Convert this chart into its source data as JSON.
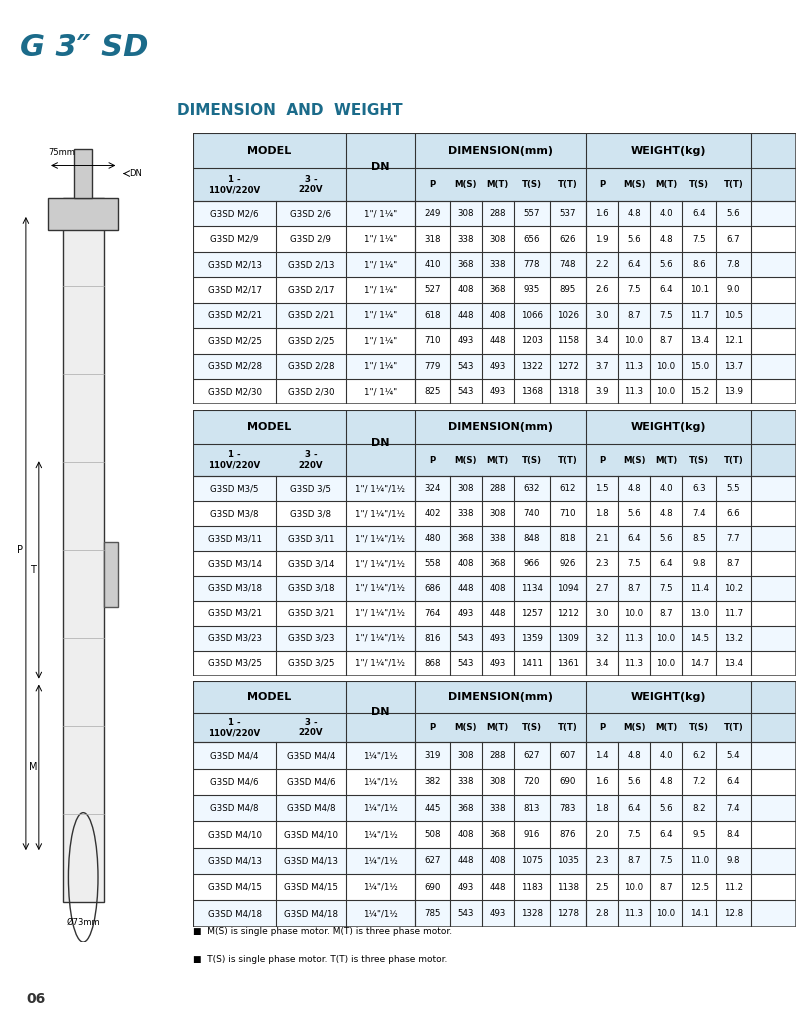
{
  "title": "G 3″ SD",
  "subtitle": "DIMENSION  AND  WEIGHT",
  "title_bg": "#7ECECE",
  "title_color": "#1B6B8A",
  "header_bg": "#D8E8F0",
  "table1": {
    "col_headers": [
      "MODEL",
      "",
      "DN",
      "DIMENSION(mm)",
      "",
      "",
      "",
      "",
      "WEIGHT(kg)",
      "",
      "",
      "",
      ""
    ],
    "sub_headers_model": [
      "1 -\n110V/220V",
      "3 -\n220V"
    ],
    "sub_headers_dim": [
      "P",
      "M(S)",
      "M(T)",
      "T(S)",
      "T(T)"
    ],
    "sub_headers_wt": [
      "P",
      "M(S)",
      "M(T)",
      "T(S)",
      "T(T)"
    ],
    "rows": [
      [
        "G3SD M2/6",
        "G3SD 2/6",
        "1\"/ 1¼\"",
        249,
        308,
        288,
        557,
        537,
        1.6,
        4.8,
        4.0,
        6.4,
        5.6
      ],
      [
        "G3SD M2/9",
        "G3SD 2/9",
        "1\"/ 1¼\"",
        318,
        338,
        308,
        656,
        626,
        1.9,
        5.6,
        4.8,
        7.5,
        6.7
      ],
      [
        "G3SD M2/13",
        "G3SD 2/13",
        "1\"/ 1¼\"",
        410,
        368,
        338,
        778,
        748,
        2.2,
        6.4,
        5.6,
        8.6,
        7.8
      ],
      [
        "G3SD M2/17",
        "G3SD 2/17",
        "1\"/ 1¼\"",
        527,
        408,
        368,
        935,
        895,
        2.6,
        7.5,
        6.4,
        10.1,
        9.0
      ],
      [
        "G3SD M2/21",
        "G3SD 2/21",
        "1\"/ 1¼\"",
        618,
        448,
        408,
        1066,
        1026,
        3.0,
        8.7,
        7.5,
        11.7,
        10.5
      ],
      [
        "G3SD M2/25",
        "G3SD 2/25",
        "1\"/ 1¼\"",
        710,
        493,
        448,
        1203,
        1158,
        3.4,
        10.0,
        8.7,
        13.4,
        12.1
      ],
      [
        "G3SD M2/28",
        "G3SD 2/28",
        "1\"/ 1¼\"",
        779,
        543,
        493,
        1322,
        1272,
        3.7,
        11.3,
        10.0,
        15.0,
        13.7
      ],
      [
        "G3SD M2/30",
        "G3SD 2/30",
        "1\"/ 1¼\"",
        825,
        543,
        493,
        1368,
        1318,
        3.9,
        11.3,
        10.0,
        15.2,
        13.9
      ]
    ]
  },
  "table2": {
    "sub_headers_model": [
      "1 -\n110V/220V",
      "3 -\n220V"
    ],
    "sub_headers_dim": [
      "P",
      "M(S)",
      "M(T)",
      "T(S)",
      "T(T)"
    ],
    "sub_headers_wt": [
      "P",
      "M(S)",
      "M(T)",
      "T(S)",
      "T(T)"
    ],
    "rows": [
      [
        "G3SD M3/5",
        "G3SD 3/5",
        "1\"/ 1¼\"/1½",
        324,
        308,
        288,
        632,
        612,
        1.5,
        4.8,
        4.0,
        6.3,
        5.5
      ],
      [
        "G3SD M3/8",
        "G3SD 3/8",
        "1\"/ 1¼\"/1½",
        402,
        338,
        308,
        740,
        710,
        1.8,
        5.6,
        4.8,
        7.4,
        6.6
      ],
      [
        "G3SD M3/11",
        "G3SD 3/11",
        "1\"/ 1¼\"/1½",
        480,
        368,
        338,
        848,
        818,
        2.1,
        6.4,
        5.6,
        8.5,
        7.7
      ],
      [
        "G3SD M3/14",
        "G3SD 3/14",
        "1\"/ 1¼\"/1½",
        558,
        408,
        368,
        966,
        926,
        2.3,
        7.5,
        6.4,
        9.8,
        8.7
      ],
      [
        "G3SD M3/18",
        "G3SD 3/18",
        "1\"/ 1¼\"/1½",
        686,
        448,
        408,
        1134,
        1094,
        2.7,
        8.7,
        7.5,
        11.4,
        10.2
      ],
      [
        "G3SD M3/21",
        "G3SD 3/21",
        "1\"/ 1¼\"/1½",
        764,
        493,
        448,
        1257,
        1212,
        3.0,
        10.0,
        8.7,
        13.0,
        11.7
      ],
      [
        "G3SD M3/23",
        "G3SD 3/23",
        "1\"/ 1¼\"/1½",
        816,
        543,
        493,
        1359,
        1309,
        3.2,
        11.3,
        10.0,
        14.5,
        13.2
      ],
      [
        "G3SD M3/25",
        "G3SD 3/25",
        "1\"/ 1¼\"/1½",
        868,
        543,
        493,
        1411,
        1361,
        3.4,
        11.3,
        10.0,
        14.7,
        13.4
      ]
    ]
  },
  "table3": {
    "sub_headers_model": [
      "1 -\n110V/220V",
      "3 -\n220V"
    ],
    "sub_headers_dim": [
      "P",
      "M(S)",
      "M(T)",
      "T(S)",
      "T(T)"
    ],
    "sub_headers_wt": [
      "P",
      "M(S)",
      "M(T)",
      "T(S)",
      "T(T)"
    ],
    "rows": [
      [
        "G3SD M4/4",
        "G3SD M4/4",
        "1¼\"/1½",
        319,
        308,
        288,
        627,
        607,
        1.4,
        4.8,
        4.0,
        6.2,
        5.4
      ],
      [
        "G3SD M4/6",
        "G3SD M4/6",
        "1¼\"/1½",
        382,
        338,
        308,
        720,
        690,
        1.6,
        5.6,
        4.8,
        7.2,
        6.4
      ],
      [
        "G3SD M4/8",
        "G3SD M4/8",
        "1¼\"/1½",
        445,
        368,
        338,
        813,
        783,
        1.8,
        6.4,
        5.6,
        8.2,
        7.4
      ],
      [
        "G3SD M4/10",
        "G3SD M4/10",
        "1¼\"/1½",
        508,
        408,
        368,
        916,
        876,
        2.0,
        7.5,
        6.4,
        9.5,
        8.4
      ],
      [
        "G3SD M4/13",
        "G3SD M4/13",
        "1¼\"/1½",
        627,
        448,
        408,
        1075,
        1035,
        2.3,
        8.7,
        7.5,
        11.0,
        9.8
      ],
      [
        "G3SD M4/15",
        "G3SD M4/15",
        "1¼\"/1½",
        690,
        493,
        448,
        1183,
        1138,
        2.5,
        10.0,
        8.7,
        12.5,
        11.2
      ],
      [
        "G3SD M4/18",
        "G3SD M4/18",
        "1¼\"/1½",
        785,
        543,
        493,
        1328,
        1278,
        2.8,
        11.3,
        10.0,
        14.1,
        12.8
      ]
    ]
  },
  "footnotes": [
    "■  M(S) is single phase motor. M(T) is three phase motor.",
    "■  T(S) is single phase motor. T(T) is three phase motor."
  ]
}
